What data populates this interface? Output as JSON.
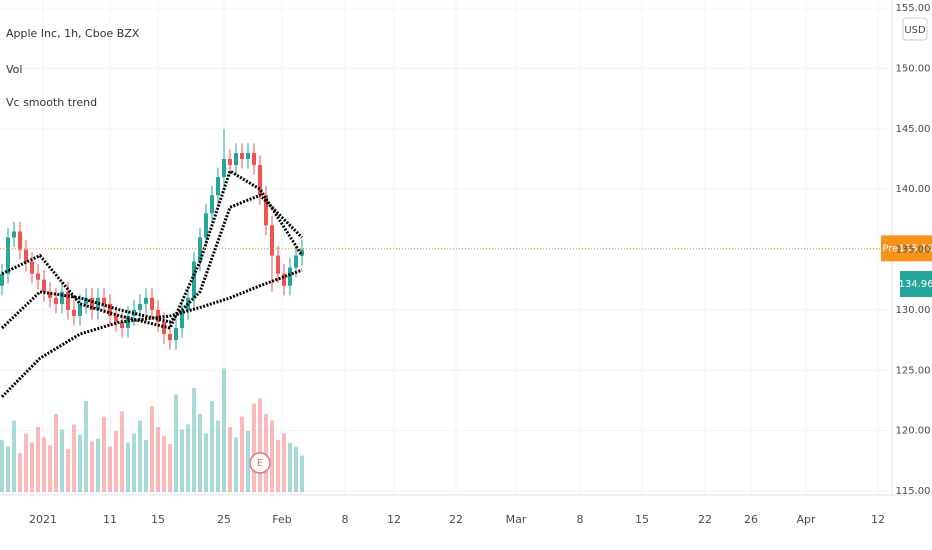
{
  "chart_data": {
    "type": "candlestick",
    "title": "Apple Inc, 1h, Cboe BZX",
    "currency": "USD",
    "x": [
      1,
      4,
      7,
      10,
      13,
      16,
      19,
      22,
      25,
      28,
      31,
      34,
      37,
      40,
      43,
      46,
      49,
      52,
      55,
      58,
      61,
      64,
      67,
      70,
      73,
      76,
      79,
      82,
      85,
      88,
      91,
      94,
      97,
      100,
      103,
      106,
      109,
      112,
      115,
      118,
      121,
      124,
      127,
      130,
      133,
      136,
      139,
      142,
      145,
      148,
      151
    ],
    "open": [
      132.0,
      133.0,
      136.0,
      136.5,
      135.0,
      134.0,
      133.0,
      132.5,
      131.5,
      131.0,
      130.5,
      131.5,
      130.0,
      129.5,
      130.5,
      131.0,
      130.0,
      131.0,
      130.5,
      129.5,
      129.0,
      128.5,
      129.5,
      130.0,
      130.5,
      131.0,
      130.0,
      129.0,
      128.0,
      127.5,
      128.5,
      130.0,
      131.0,
      134.0,
      136.0,
      138.0,
      139.5,
      141.0,
      142.5,
      142.0,
      143.0,
      142.5,
      143.0,
      142.0,
      139.5,
      137.0,
      134.5,
      133.0,
      132.0,
      133.5,
      134.5
    ],
    "high": [
      133.8,
      136.8,
      137.3,
      137.3,
      135.8,
      134.8,
      133.8,
      133.3,
      132.3,
      131.8,
      132.3,
      132.3,
      130.8,
      131.3,
      131.8,
      131.8,
      131.8,
      131.8,
      131.3,
      130.3,
      129.8,
      130.3,
      130.8,
      131.3,
      131.8,
      131.8,
      130.8,
      129.8,
      128.8,
      129.3,
      130.8,
      131.8,
      134.8,
      136.8,
      138.8,
      140.3,
      141.8,
      145.0,
      143.3,
      143.8,
      143.8,
      143.8,
      143.8,
      142.8,
      140.3,
      137.8,
      135.3,
      133.8,
      134.3,
      135.3,
      135.8
    ],
    "low": [
      131.2,
      132.2,
      135.2,
      134.2,
      133.2,
      132.2,
      131.7,
      130.7,
      130.2,
      129.7,
      129.7,
      129.2,
      128.7,
      128.7,
      129.7,
      129.2,
      129.2,
      129.7,
      128.7,
      128.2,
      127.7,
      127.7,
      128.7,
      129.2,
      129.7,
      129.2,
      128.2,
      127.2,
      126.7,
      126.7,
      127.7,
      129.2,
      130.2,
      133.2,
      135.2,
      137.2,
      138.7,
      140.2,
      141.2,
      141.2,
      141.7,
      141.7,
      141.2,
      138.7,
      136.2,
      131.5,
      132.2,
      131.2,
      131.2,
      132.7,
      133.7
    ],
    "close": [
      133.0,
      136.0,
      136.5,
      135.0,
      134.0,
      133.0,
      132.5,
      131.5,
      131.0,
      130.5,
      131.5,
      130.0,
      129.5,
      130.5,
      131.0,
      130.0,
      131.0,
      130.5,
      129.5,
      129.0,
      128.5,
      129.5,
      130.0,
      130.5,
      131.0,
      130.0,
      129.0,
      128.0,
      127.5,
      128.5,
      130.0,
      131.0,
      134.0,
      136.0,
      138.0,
      139.5,
      141.0,
      142.5,
      142.0,
      143.0,
      142.5,
      143.0,
      142.0,
      139.5,
      137.0,
      134.5,
      133.0,
      132.0,
      133.5,
      134.5,
      135.0
    ],
    "up_color": "#26a69a",
    "down_color": "#ef5350",
    "volume": {
      "name": "Vol",
      "vlim": [
        0,
        100
      ],
      "values": [
        40,
        35,
        55,
        30,
        45,
        38,
        50,
        42,
        36,
        60,
        48,
        33,
        52,
        44,
        70,
        39,
        41,
        58,
        35,
        47,
        62,
        38,
        45,
        55,
        40,
        66,
        50,
        43,
        37,
        75,
        48,
        52,
        80,
        60,
        45,
        70,
        55,
        95,
        50,
        42,
        58,
        47,
        68,
        72,
        60,
        55,
        40,
        45,
        38,
        35,
        28
      ]
    },
    "trend": {
      "name": "Vc smooth trend",
      "x": [
        1,
        20,
        40,
        60,
        85,
        100,
        115,
        130,
        151
      ],
      "series": [
        {
          "color": "#000000",
          "values": [
            133,
            134.5,
            130.5,
            129.5,
            128.5,
            134,
            141.5,
            140,
            134.5
          ]
        },
        {
          "color": "#000000",
          "values": [
            128.5,
            131.5,
            131,
            130,
            129,
            131.5,
            138.5,
            139.5,
            136
          ]
        },
        {
          "color": "#000000",
          "values": [
            122.8,
            126,
            128,
            129,
            129.5,
            130.2,
            131,
            132,
            133.3
          ]
        }
      ]
    },
    "earnings_marker": {
      "label": "E",
      "x": 130
    },
    "price_lines": [
      {
        "label": "Pre",
        "value": 135.1,
        "value_label": "135.10",
        "color": "#f7931a"
      },
      {
        "value": 134.96,
        "value_label": "134.96",
        "color": "#26a69a"
      }
    ],
    "xlim": [
      0,
      446
    ],
    "xticks": [
      {
        "value": 21.5,
        "label": "2021"
      },
      {
        "value": 55,
        "label": "11"
      },
      {
        "value": 79,
        "label": "15"
      },
      {
        "value": 112,
        "label": "25"
      },
      {
        "value": 141,
        "label": "Feb"
      },
      {
        "value": 172.5,
        "label": "8"
      },
      {
        "value": 197,
        "label": "12"
      },
      {
        "value": 228,
        "label": "22"
      },
      {
        "value": 258,
        "label": "Mar"
      },
      {
        "value": 290,
        "label": "8"
      },
      {
        "value": 321,
        "label": "15"
      },
      {
        "value": 352.5,
        "label": "22"
      },
      {
        "value": 375.5,
        "label": "26"
      },
      {
        "value": 403,
        "label": "Apr"
      },
      {
        "value": 439,
        "label": "12"
      }
    ],
    "ylim": [
      114.67,
      155.67
    ],
    "yticks": [
      {
        "value": 115,
        "label": "115.00"
      },
      {
        "value": 120,
        "label": "120.00"
      },
      {
        "value": 125,
        "label": "125.00"
      },
      {
        "value": 130,
        "label": "130.00"
      },
      {
        "value": 135,
        "label": "135.00"
      },
      {
        "value": 140,
        "label": "140.00"
      },
      {
        "value": 145,
        "label": "145.00"
      },
      {
        "value": 150,
        "label": "150.00"
      },
      {
        "value": 155,
        "label": "155.00"
      }
    ],
    "grid": true
  }
}
